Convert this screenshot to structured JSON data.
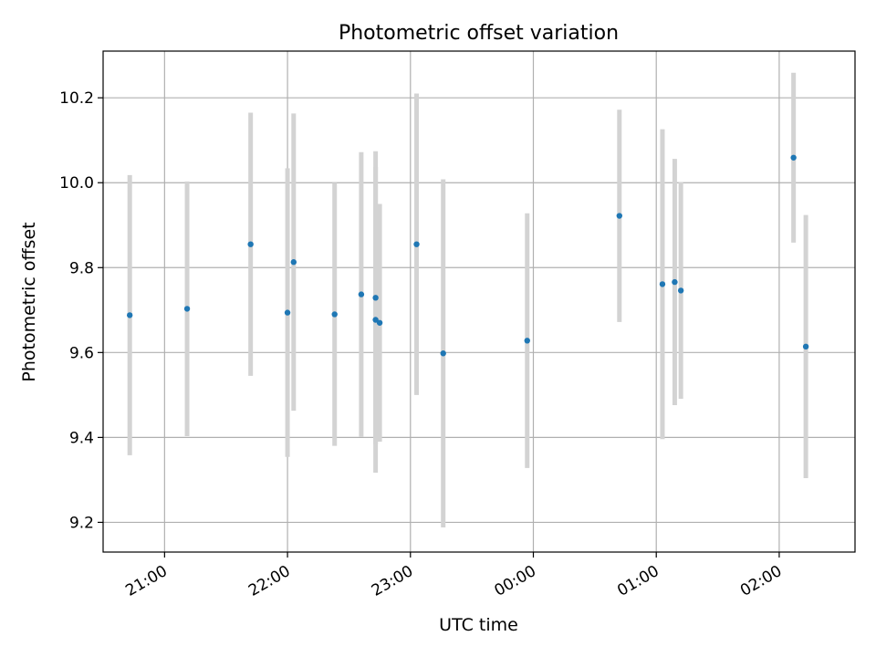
{
  "chart_data": {
    "type": "scatter",
    "title": "Photometric offset variation",
    "xlabel": "UTC time",
    "ylabel": "Photometric offset",
    "grid": true,
    "xlim": [
      "20:30",
      "02:37"
    ],
    "ylim": [
      9.13,
      10.31
    ],
    "x_ticks": [
      "21:00",
      "22:00",
      "23:00",
      "00:00",
      "01:00",
      "02:00"
    ],
    "y_ticks": [
      9.2,
      9.4,
      9.6,
      9.8,
      10.0,
      10.2
    ],
    "point_color": "#1f77b4",
    "errorbar_color": "#d3d3d3",
    "points": [
      {
        "time": "20:43",
        "y": 9.688,
        "err": 0.33
      },
      {
        "time": "21:11",
        "y": 9.703,
        "err": 0.3
      },
      {
        "time": "21:42",
        "y": 9.855,
        "err": 0.31
      },
      {
        "time": "22:00",
        "y": 9.694,
        "err": 0.34
      },
      {
        "time": "22:03",
        "y": 9.813,
        "err": 0.35
      },
      {
        "time": "22:23",
        "y": 9.69,
        "err": 0.31
      },
      {
        "time": "22:36",
        "y": 9.737,
        "err": 0.335
      },
      {
        "time": "22:43",
        "y": 9.729,
        "err": 0.345
      },
      {
        "time": "22:43",
        "y": 9.677,
        "err": 0.36
      },
      {
        "time": "22:45",
        "y": 9.67,
        "err": 0.28
      },
      {
        "time": "23:03",
        "y": 9.855,
        "err": 0.355
      },
      {
        "time": "23:16",
        "y": 9.598,
        "err": 0.41
      },
      {
        "time": "23:57",
        "y": 9.628,
        "err": 0.3
      },
      {
        "time": "00:42",
        "y": 9.922,
        "err": 0.25
      },
      {
        "time": "01:03",
        "y": 9.761,
        "err": 0.365
      },
      {
        "time": "01:09",
        "y": 9.766,
        "err": 0.29
      },
      {
        "time": "01:12",
        "y": 9.746,
        "err": 0.255
      },
      {
        "time": "02:07",
        "y": 10.059,
        "err": 0.2
      },
      {
        "time": "02:13",
        "y": 9.614,
        "err": 0.31
      }
    ]
  }
}
